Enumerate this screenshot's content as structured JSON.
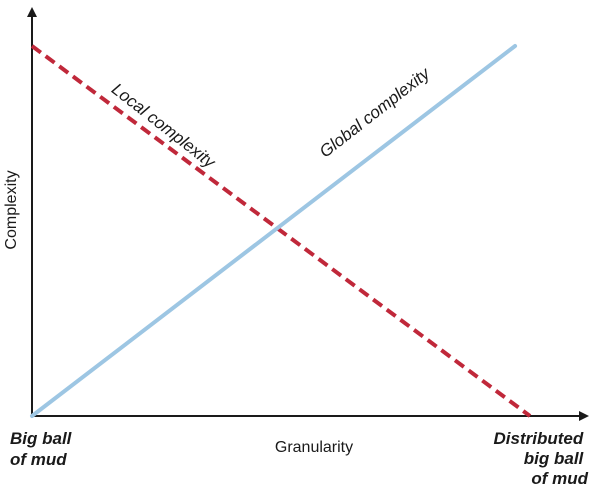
{
  "chart_data": {
    "type": "line",
    "title": "",
    "xlabel": "Granularity",
    "ylabel": "Complexity",
    "x_tick_labels": {
      "left": [
        "Big ball",
        "of mud"
      ],
      "right": [
        "Distributed",
        "big ball",
        "of mud"
      ]
    },
    "xlim": [
      0,
      1
    ],
    "ylim": [
      0,
      1
    ],
    "grid": false,
    "legend": "none",
    "series": [
      {
        "name": "Local complexity",
        "style": "dashed",
        "color": "#c0283a",
        "x": [
          0,
          1
        ],
        "y": [
          1,
          0
        ]
      },
      {
        "name": "Global complexity",
        "style": "solid",
        "color": "#9dc6e3",
        "x": [
          0,
          0.97
        ],
        "y": [
          0,
          1
        ]
      }
    ]
  }
}
